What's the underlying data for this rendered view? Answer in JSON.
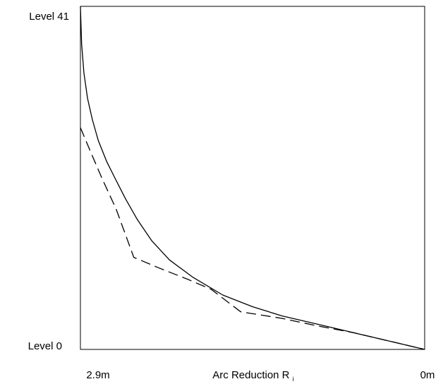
{
  "chart_data": {
    "type": "line",
    "title": "",
    "xlabel": "Arc Reduction R",
    "xlabel_subscript": "i",
    "ylabel": "",
    "x_tick_labels": [
      "2.9m",
      "0m"
    ],
    "y_tick_labels": [
      "Level 0",
      "Level 41"
    ],
    "xlim": [
      2.9,
      0
    ],
    "ylim": [
      0,
      41
    ],
    "grid": false,
    "legend": "none",
    "series": [
      {
        "line_style": "solid",
        "color": "#000000",
        "points": [
          {
            "x": 2.9,
            "y": 41
          },
          {
            "x": 2.89,
            "y": 36.5
          },
          {
            "x": 2.87,
            "y": 33
          },
          {
            "x": 2.84,
            "y": 30
          },
          {
            "x": 2.8,
            "y": 27.5
          },
          {
            "x": 2.75,
            "y": 25
          },
          {
            "x": 2.68,
            "y": 22.5
          },
          {
            "x": 2.61,
            "y": 20.5
          },
          {
            "x": 2.52,
            "y": 18
          },
          {
            "x": 2.42,
            "y": 15.5
          },
          {
            "x": 2.3,
            "y": 13
          },
          {
            "x": 2.15,
            "y": 10.7
          },
          {
            "x": 1.95,
            "y": 8.6
          },
          {
            "x": 1.7,
            "y": 6.5
          },
          {
            "x": 1.45,
            "y": 5.1
          },
          {
            "x": 1.2,
            "y": 4.0
          },
          {
            "x": 0.9,
            "y": 3.0
          },
          {
            "x": 0.6,
            "y": 2.0
          },
          {
            "x": 0.3,
            "y": 1.0
          },
          {
            "x": 0.0,
            "y": 0
          }
        ]
      },
      {
        "line_style": "dashed",
        "color": "#000000",
        "points": [
          {
            "x": 2.9,
            "y": 26.5
          },
          {
            "x": 2.82,
            "y": 23.8
          },
          {
            "x": 2.72,
            "y": 20.5
          },
          {
            "x": 2.6,
            "y": 16.8
          },
          {
            "x": 2.45,
            "y": 11.0
          },
          {
            "x": 2.25,
            "y": 9.8
          },
          {
            "x": 2.0,
            "y": 8.4
          },
          {
            "x": 1.8,
            "y": 7.2
          },
          {
            "x": 1.55,
            "y": 4.5
          },
          {
            "x": 1.2,
            "y": 3.7
          },
          {
            "x": 0.9,
            "y": 2.8
          },
          {
            "x": 0.6,
            "y": 2.0
          },
          {
            "x": 0.3,
            "y": 1.0
          },
          {
            "x": 0.0,
            "y": 0
          }
        ]
      }
    ]
  }
}
